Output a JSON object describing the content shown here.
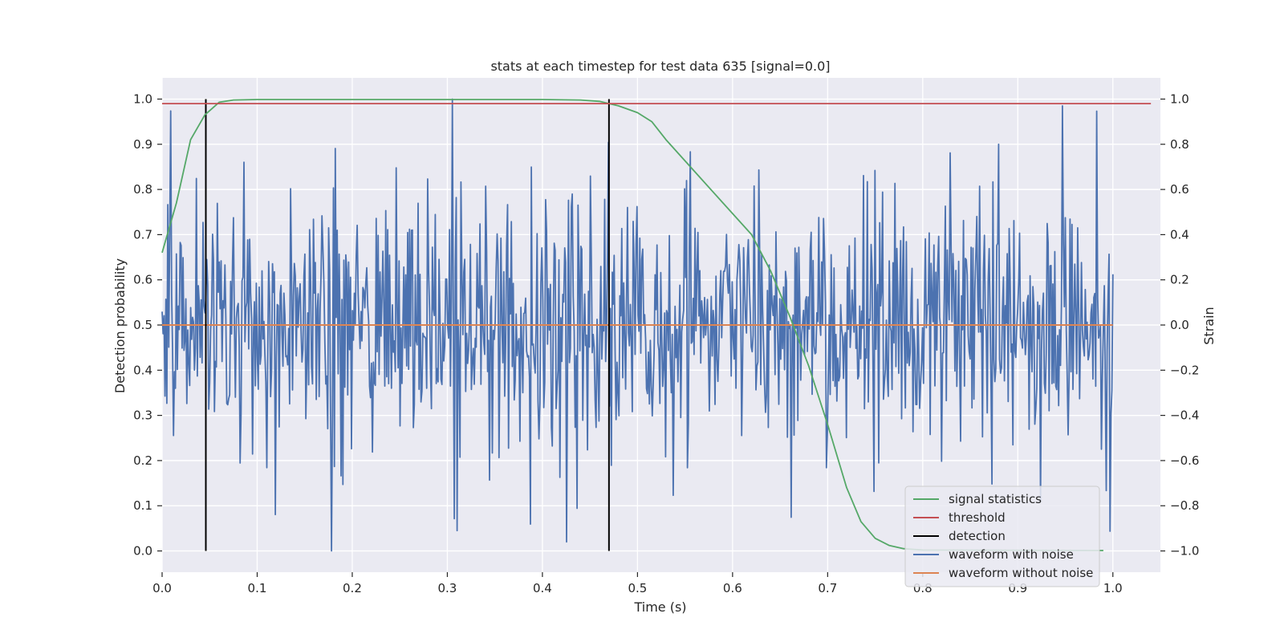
{
  "chart_data": {
    "type": "line",
    "title": "stats at each timestep for test data 635 [signal=0.0]",
    "xlabel": "Time (s)",
    "ylabel": "Detection probability",
    "y2label": "Strain",
    "xlim": [
      0.0,
      1.05
    ],
    "ylim": [
      -0.047,
      1.047
    ],
    "y2lim": [
      -1.094,
      1.094
    ],
    "x_ticks": [
      "0.0",
      "0.1",
      "0.2",
      "0.3",
      "0.4",
      "0.5",
      "0.6",
      "0.7",
      "0.8",
      "0.9",
      "1.0"
    ],
    "x_tick_values": [
      0.0,
      0.1,
      0.2,
      0.3,
      0.4,
      0.5,
      0.6,
      0.7,
      0.8,
      0.9,
      1.0
    ],
    "y_ticks": [
      "0.0",
      "0.1",
      "0.2",
      "0.3",
      "0.4",
      "0.5",
      "0.6",
      "0.7",
      "0.8",
      "0.9",
      "1.0"
    ],
    "y_tick_values": [
      0.0,
      0.1,
      0.2,
      0.3,
      0.4,
      0.5,
      0.6,
      0.7,
      0.8,
      0.9,
      1.0
    ],
    "y2_ticks": [
      "−1.0",
      "−0.8",
      "−0.6",
      "−0.4",
      "−0.2",
      "0.0",
      "0.2",
      "0.4",
      "0.6",
      "0.8",
      "1.0"
    ],
    "y2_tick_values": [
      -1.0,
      -0.8,
      -0.6,
      -0.4,
      -0.2,
      0.0,
      0.2,
      0.4,
      0.6,
      0.8,
      1.0
    ],
    "grid": true,
    "legend_position": "bottom-right",
    "colors": {
      "background": "#eaeaf2",
      "grid": "#ffffff",
      "signal_statistics": "#55a868",
      "threshold": "#c44e52",
      "detection": "#000000",
      "waveform_with_noise": "#4c72b0",
      "waveform_without_noise": "#dd8452"
    },
    "series": [
      {
        "name": "signal statistics",
        "axis": "left",
        "color": "#55a868",
        "points": [
          [
            0.0,
            0.66
          ],
          [
            0.015,
            0.77
          ],
          [
            0.03,
            0.91
          ],
          [
            0.045,
            0.965
          ],
          [
            0.06,
            0.993
          ],
          [
            0.075,
            0.998
          ],
          [
            0.1,
            0.999
          ],
          [
            0.2,
            0.999
          ],
          [
            0.3,
            0.999
          ],
          [
            0.4,
            0.999
          ],
          [
            0.44,
            0.998
          ],
          [
            0.46,
            0.995
          ],
          [
            0.48,
            0.985
          ],
          [
            0.5,
            0.97
          ],
          [
            0.515,
            0.95
          ],
          [
            0.53,
            0.91
          ],
          [
            0.56,
            0.84
          ],
          [
            0.59,
            0.77
          ],
          [
            0.62,
            0.7
          ],
          [
            0.64,
            0.62
          ],
          [
            0.66,
            0.52
          ],
          [
            0.68,
            0.41
          ],
          [
            0.7,
            0.28
          ],
          [
            0.72,
            0.14
          ],
          [
            0.735,
            0.065
          ],
          [
            0.75,
            0.028
          ],
          [
            0.765,
            0.012
          ],
          [
            0.78,
            0.005
          ],
          [
            0.8,
            0.002
          ],
          [
            0.99,
            0.001
          ]
        ]
      },
      {
        "name": "threshold",
        "axis": "left",
        "color": "#c44e52",
        "value": 0.99,
        "x_range": [
          0.0,
          1.04
        ]
      },
      {
        "name": "detection",
        "axis": "left",
        "color": "#000000",
        "x_values": [
          0.046,
          0.47
        ],
        "y_range": [
          0.0,
          1.0
        ]
      },
      {
        "name": "waveform with noise",
        "axis": "right",
        "color": "#4c72b0",
        "generated": {
          "count": 1000,
          "x_range": [
            0.0,
            1.0
          ],
          "sigma": 0.28,
          "seed": 635
        },
        "notable_points": [
          [
            0.178,
            -1.0
          ],
          [
            0.305,
            1.0
          ],
          [
            0.947,
            0.97
          ],
          [
            0.31,
            -0.91
          ],
          [
            0.425,
            -0.96
          ],
          [
            0.88,
            0.8
          ]
        ]
      },
      {
        "name": "waveform without noise",
        "axis": "right",
        "color": "#dd8452",
        "value": 0.0,
        "x_range": [
          0.0,
          1.0
        ]
      }
    ],
    "legend": [
      "signal statistics",
      "threshold",
      "detection",
      "waveform with noise",
      "waveform without noise"
    ]
  }
}
